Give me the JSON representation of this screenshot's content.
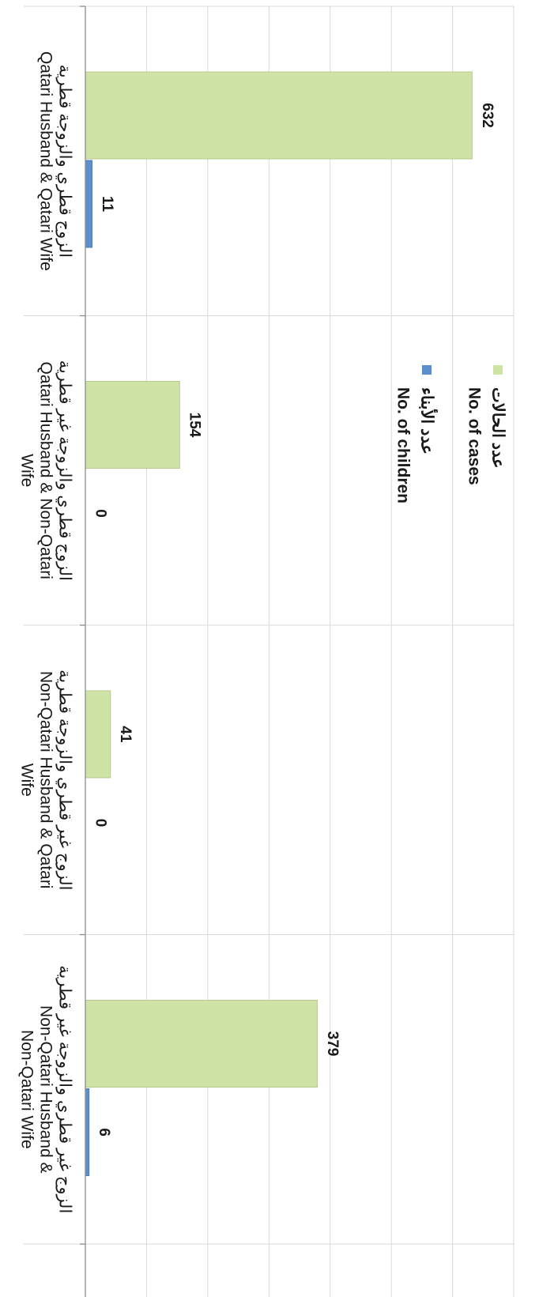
{
  "chart_data": {
    "type": "bar",
    "orientation": "horizontal",
    "categories": [
      {
        "en": "Qatari Husband & Qatari Wife",
        "ar": "الزوج قطري والزوجة قطرية"
      },
      {
        "en": "Qatari Husband & Non-Qatari Wife",
        "ar": "الزوج قطري والزوجة غير قطرية"
      },
      {
        "en": "Non-Qatari Husband & Qatari Wife",
        "ar": "الزوج غير قطري والزوجة قطرية"
      },
      {
        "en": "Non-Qatari Husband & Non-Qatari Wife",
        "ar": "الزوج غير قطري والزوجة غير قطرية"
      }
    ],
    "series": [
      {
        "name": "No. of cases",
        "name_ar": "عدد الحالات",
        "values": [
          632,
          154,
          41,
          379
        ],
        "color": "#d0e3a6"
      },
      {
        "name": "No. of children",
        "name_ar": "عدد الأبناء",
        "values": [
          11,
          0,
          0,
          6
        ],
        "color": "#5b8fce"
      }
    ],
    "xlim": [
      0,
      700
    ],
    "grid": true,
    "legend": "right"
  }
}
